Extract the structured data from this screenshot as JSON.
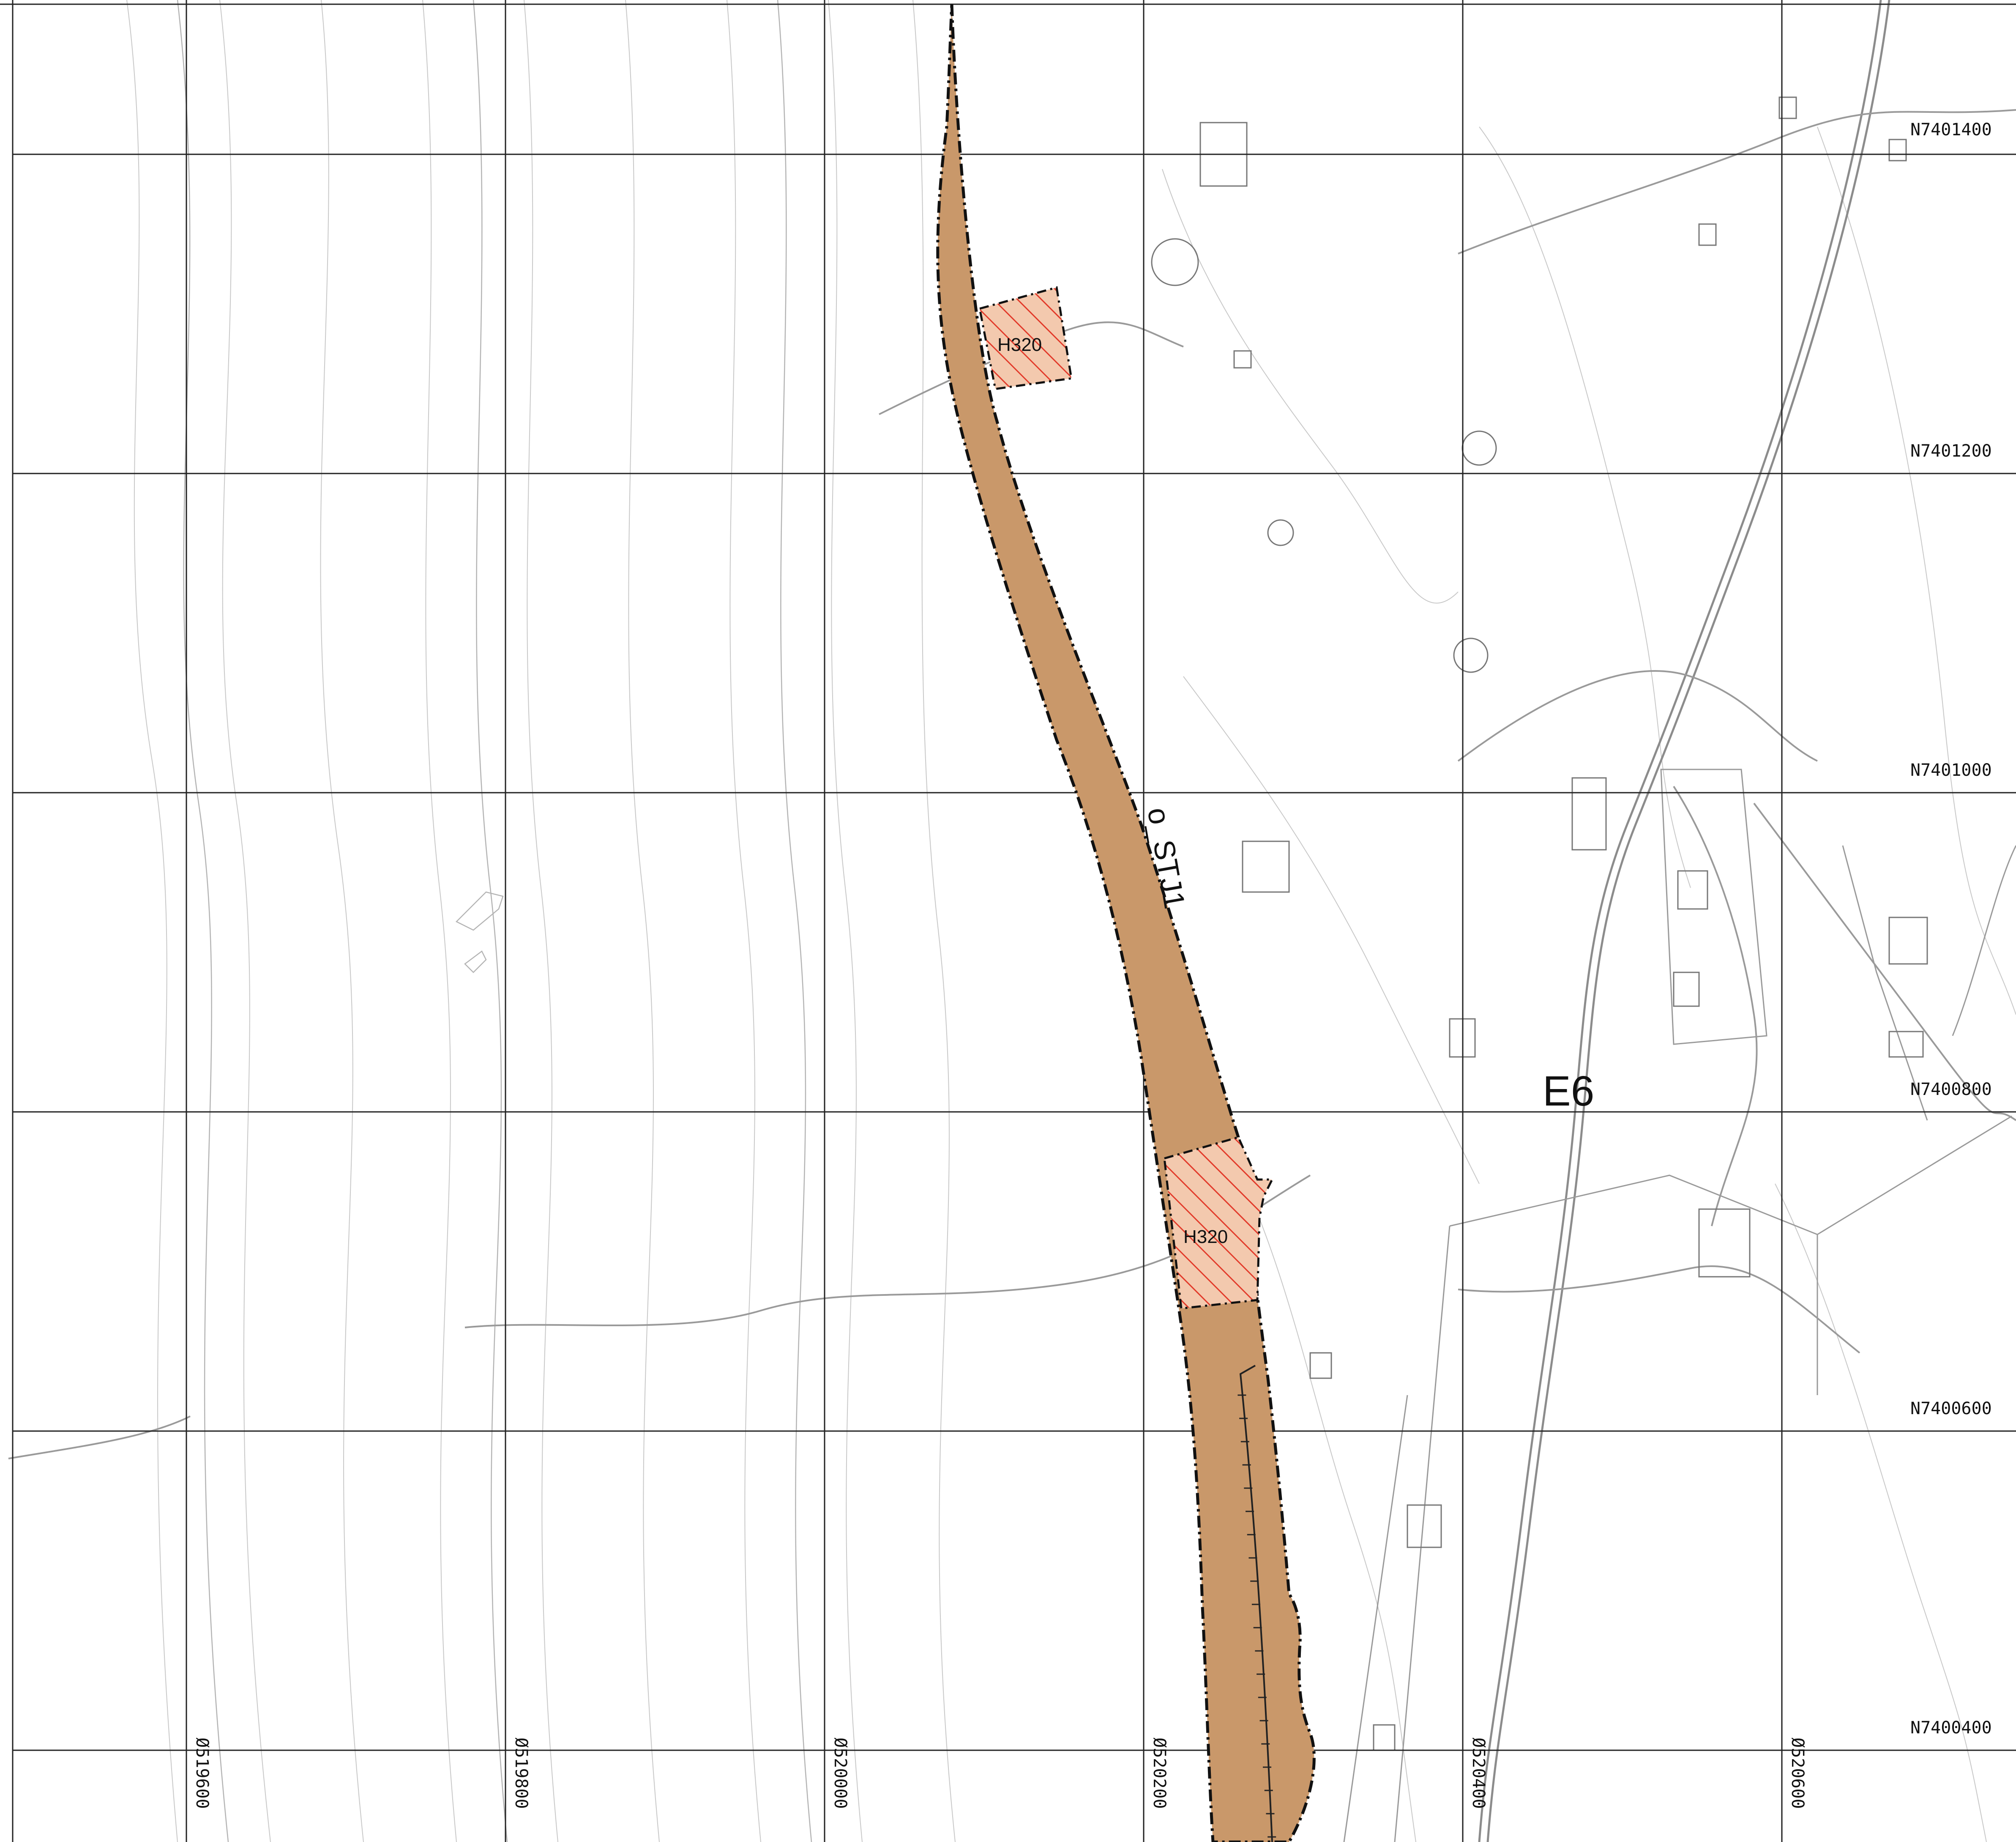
{
  "map": {
    "grid": {
      "easting_labels": [
        "Ø519600",
        "Ø519800",
        "Ø520000",
        "Ø520200",
        "Ø520400",
        "Ø520600"
      ],
      "northing_labels": [
        "N7401400",
        "N7401200",
        "N7401000",
        "N7400800",
        "N7400600",
        "N7400400"
      ]
    },
    "zones": {
      "corridor_label": "o_STJ1",
      "hazard_labels": [
        "H320",
        "H320"
      ]
    },
    "road_label": "E6",
    "colors": {
      "corridor_fill": "#c9986a",
      "hazard_hatch": "#e23a2a",
      "grid": "#222222",
      "contour": "#c8c8c8"
    }
  }
}
